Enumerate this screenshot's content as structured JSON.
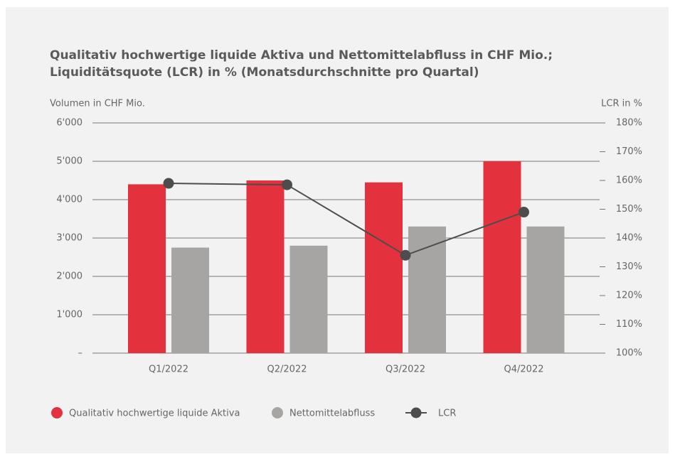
{
  "chart_data": {
    "type": "bar",
    "title_lines": [
      "Qualitativ hochwertige liquide Aktiva und Nettomittelabfluss in CHF Mio.;",
      "Liquiditätsquote (LCR) in % (Monatsdurchschnitte pro Quartal)"
    ],
    "y_label": "Volumen in CHF Mio.",
    "y2_label": "LCR in %",
    "categories": [
      "Q1/2022",
      "Q2/2022",
      "Q3/2022",
      "Q4/2022"
    ],
    "series": [
      {
        "name": "Qualitativ hochwertige liquide Aktiva",
        "color": "#e3323e",
        "type": "bar",
        "values": [
          4400,
          4500,
          4450,
          5000
        ]
      },
      {
        "name": "Nettomittelabfluss",
        "color": "#a6a5a3",
        "type": "bar",
        "values": [
          2750,
          2800,
          3300,
          3300
        ]
      },
      {
        "name": "LCR",
        "color": "#4d4d4d",
        "type": "line",
        "axis": "y2",
        "values": [
          159,
          158.5,
          134,
          149
        ]
      }
    ],
    "ylim": [
      0,
      6000
    ],
    "yticks": [
      {
        "value": 0,
        "label": "–"
      },
      {
        "value": 1000,
        "label": "1'000"
      },
      {
        "value": 2000,
        "label": "2'000"
      },
      {
        "value": 3000,
        "label": "3'000"
      },
      {
        "value": 4000,
        "label": "4'000"
      },
      {
        "value": 5000,
        "label": "5'000"
      },
      {
        "value": 6000,
        "label": "6'000"
      }
    ],
    "y2lim": [
      100,
      180
    ],
    "y2ticks": [
      {
        "value": 100,
        "label": "100%"
      },
      {
        "value": 110,
        "label": "110%"
      },
      {
        "value": 120,
        "label": "120%"
      },
      {
        "value": 130,
        "label": "130%"
      },
      {
        "value": 140,
        "label": "140%"
      },
      {
        "value": 150,
        "label": "150%"
      },
      {
        "value": 160,
        "label": "160%"
      },
      {
        "value": 170,
        "label": "170%"
      },
      {
        "value": 180,
        "label": "180%"
      }
    ],
    "grid": true
  }
}
